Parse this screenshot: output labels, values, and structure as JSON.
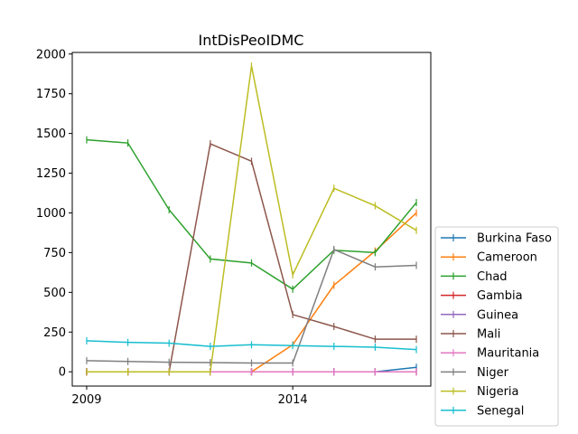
{
  "chart_data": {
    "type": "line",
    "title": "IntDisPeoIDMC",
    "xlabel": "",
    "ylabel": "",
    "x": [
      2009,
      2010,
      2011,
      2012,
      2013,
      2014,
      2015,
      2016,
      2017
    ],
    "xlim": [
      2008.65,
      2017.35
    ],
    "ylim": [
      -90,
      2010
    ],
    "x_ticks": [
      2009,
      2014
    ],
    "y_ticks": [
      0,
      250,
      500,
      750,
      1000,
      1250,
      1500,
      1750,
      2000
    ],
    "grid": false,
    "legend_position": "lower-right outside",
    "series": [
      {
        "name": "Burkina Faso",
        "color": "#1f77b4",
        "values": [
          0,
          0,
          0,
          0,
          0,
          0,
          0,
          0,
          28
        ]
      },
      {
        "name": "Cameroon",
        "color": "#ff7f0e",
        "values": [
          0,
          0,
          0,
          0,
          0,
          170,
          545,
          760,
          1000
        ]
      },
      {
        "name": "Chad",
        "color": "#2ca02c",
        "values": [
          1460,
          1440,
          1020,
          710,
          685,
          520,
          765,
          750,
          1065
        ]
      },
      {
        "name": "Gambia",
        "color": "#d62728",
        "values": [
          0,
          0,
          0,
          0,
          0,
          0,
          0,
          0,
          0
        ]
      },
      {
        "name": "Guinea",
        "color": "#9467bd",
        "values": [
          0,
          0,
          0,
          0,
          0,
          0,
          0,
          0,
          0
        ]
      },
      {
        "name": "Mali",
        "color": "#8c564b",
        "values": [
          0,
          0,
          0,
          1435,
          1325,
          360,
          285,
          205,
          205
        ]
      },
      {
        "name": "Mauritania",
        "color": "#e377c2",
        "values": [
          0,
          0,
          0,
          0,
          0,
          0,
          0,
          0,
          0
        ]
      },
      {
        "name": "Niger",
        "color": "#7f7f7f",
        "values": [
          70,
          65,
          60,
          58,
          55,
          55,
          770,
          660,
          670
        ]
      },
      {
        "name": "Nigeria",
        "color": "#bcbd22",
        "values": [
          0,
          0,
          0,
          0,
          1925,
          610,
          1155,
          1045,
          890
        ]
      },
      {
        "name": "Senegal",
        "color": "#17becf",
        "values": [
          195,
          185,
          180,
          160,
          170,
          165,
          160,
          155,
          140
        ]
      }
    ]
  }
}
